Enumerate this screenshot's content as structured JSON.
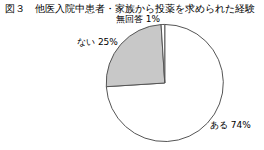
{
  "chart_data": {
    "type": "pie",
    "title": "図３　他医入院中患者・家族から投薬を求められた経験",
    "categories": [
      "ある",
      "ない",
      "無回答"
    ],
    "values": [
      74,
      25,
      1
    ],
    "value_labels": [
      "74%",
      "25%",
      "1%"
    ],
    "colors": [
      "#ffffff",
      "#c8c8c8",
      "#ffffff"
    ],
    "data_labels": true
  }
}
